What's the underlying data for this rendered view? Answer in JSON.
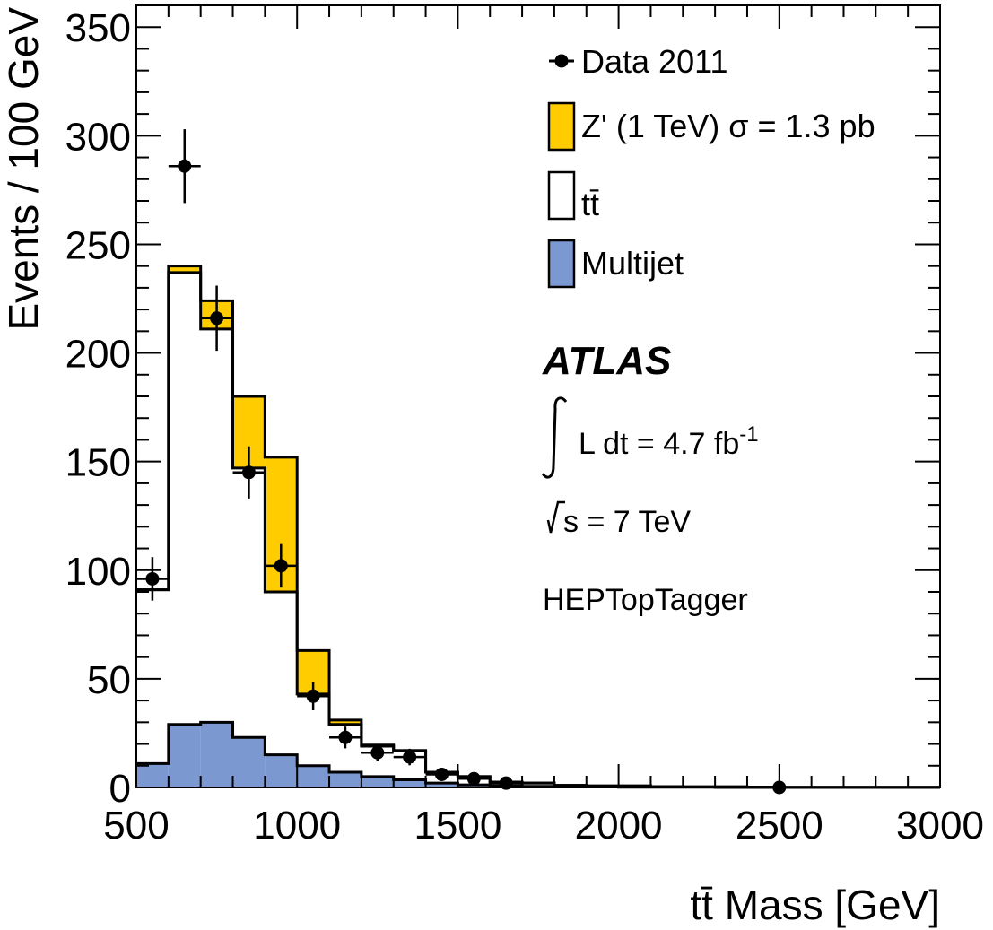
{
  "chart_data": {
    "type": "bar",
    "xlabel": "tt̄ Mass [GeV]",
    "ylabel": "Events / 100 GeV",
    "xlim": [
      500,
      3000
    ],
    "ylim": [
      0,
      360
    ],
    "x_ticks": [
      500,
      1000,
      1500,
      2000,
      2500,
      3000
    ],
    "y_ticks": [
      0,
      50,
      100,
      150,
      200,
      250,
      300,
      350
    ],
    "bin_edges": [
      500,
      600,
      700,
      800,
      900,
      1000,
      1100,
      1200,
      1300,
      1400,
      1500,
      1600,
      1700,
      1800,
      1900,
      2000,
      2100,
      2200,
      2300,
      2400,
      2500,
      2600,
      2700,
      2800,
      2900,
      3000
    ],
    "stack": [
      {
        "name": "Multijet",
        "color": "#7b98d0",
        "values": [
          11,
          29,
          30,
          23,
          15,
          10,
          7,
          5,
          3.5,
          2,
          1.2,
          0.8,
          0.5,
          0.3,
          0.2,
          0.1,
          0.1,
          0.1,
          0,
          0,
          0,
          0,
          0,
          0,
          0
        ]
      },
      {
        "name": "tt̄",
        "color": "#ffffff",
        "values": [
          80,
          208,
          181,
          124,
          75,
          33,
          22,
          14,
          13.5,
          5,
          3.8,
          1.7,
          1.5,
          0.7,
          0.5,
          0.6,
          0.3,
          0.2,
          0.3,
          0.2,
          0.1,
          0.1,
          0.1,
          0.1,
          0.1
        ]
      },
      {
        "name": "Z' (1 TeV) σ = 1.3 pb",
        "color": "#ffcc00",
        "values": [
          0,
          3,
          13,
          33,
          62,
          20,
          2,
          0.5,
          0,
          0,
          0,
          0,
          0,
          0,
          0,
          0,
          0,
          0,
          0,
          0,
          0,
          0,
          0,
          0,
          0
        ]
      }
    ],
    "data_series": {
      "name": "Data 2011",
      "x": [
        550,
        650,
        750,
        850,
        950,
        1050,
        1150,
        1250,
        1350,
        1450,
        1550,
        1650,
        2500
      ],
      "y": [
        96,
        286,
        216,
        145,
        102,
        42,
        23,
        16,
        14,
        6,
        4,
        2,
        0
      ],
      "yerr": [
        10,
        17,
        15,
        12,
        10,
        6.5,
        5,
        4,
        3.8,
        2.5,
        2,
        1.4,
        0
      ]
    },
    "legend": {
      "placement": "top-right",
      "entries": [
        "Data 2011",
        "Z' (1 TeV) σ = 1.3 pb",
        "tt̄",
        "Multijet"
      ]
    },
    "annotations": {
      "experiment": "ATLAS",
      "luminosity_label": "L dt = 4.7 fb",
      "luminosity_exponent": "-1",
      "energy_label": "s = 7 TeV",
      "tagger": "HEPTopTagger"
    }
  }
}
